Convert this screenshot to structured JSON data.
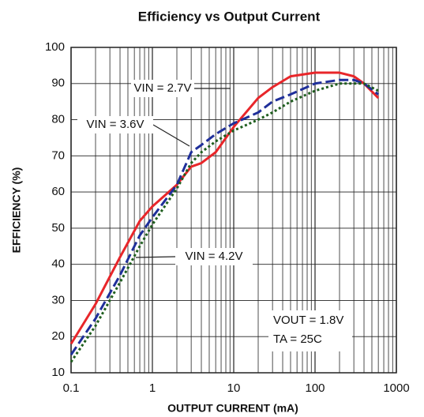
{
  "chart_data": {
    "type": "line",
    "title": "Efficiency vs Output Current",
    "xlabel": "OUTPUT CURRENT (mA)",
    "ylabel": "EFFICIENCY (%)",
    "xscale": "log",
    "xlim": [
      0.1,
      1000
    ],
    "xticks": [
      0.1,
      1,
      10,
      100,
      1000
    ],
    "ylim": [
      10,
      100
    ],
    "yticks": [
      10,
      20,
      30,
      40,
      50,
      60,
      70,
      80,
      90,
      100
    ],
    "grid": true,
    "minor_grid": true,
    "x": [
      0.1,
      0.2,
      0.4,
      0.7,
      1,
      2,
      3,
      4,
      6,
      10,
      20,
      30,
      50,
      100,
      200,
      300,
      400,
      600
    ],
    "series": [
      {
        "name": "VIN = 2.7V",
        "color": "#e8262a",
        "style": "solid",
        "values": [
          18,
          29,
          42,
          52,
          56,
          62,
          67,
          68,
          71,
          78,
          86,
          89,
          92,
          93,
          93,
          92,
          90,
          86
        ]
      },
      {
        "name": "VIN = 3.6V",
        "color": "#1f2f9a",
        "style": "dashed",
        "values": [
          15,
          25,
          37,
          48,
          53,
          62,
          71,
          73,
          76,
          79,
          82,
          85,
          87,
          90,
          91,
          91,
          90,
          87
        ]
      },
      {
        "name": "VIN = 4.2V",
        "color": "#1e5e1e",
        "style": "dotted",
        "values": [
          13,
          23,
          35,
          45,
          51,
          61,
          68,
          71,
          74,
          77,
          80,
          82,
          85,
          88,
          90,
          90,
          90,
          88
        ]
      }
    ],
    "annotations": [
      "VOUT = 1.8V",
      "TA = 25C"
    ]
  }
}
